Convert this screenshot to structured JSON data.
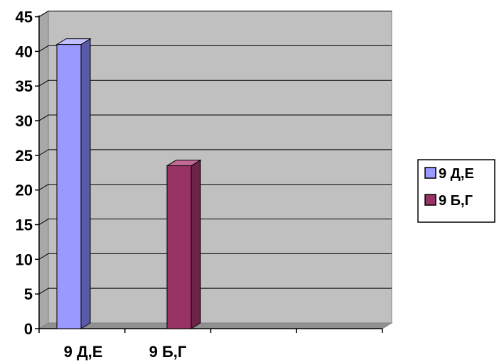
{
  "chart_data": {
    "type": "bar",
    "style": "3d-column",
    "categories": [
      "9 Д,Е",
      "9 Б,Г"
    ],
    "series": [
      {
        "name": "9 Д,Е",
        "values": [
          41,
          null
        ],
        "color": "#9999ff",
        "side_color": "#5a5aa8",
        "top_color": "#c0c0ff"
      },
      {
        "name": "9 Б,Г",
        "values": [
          null,
          23.5
        ],
        "color": "#993366",
        "side_color": "#6b2348",
        "top_color": "#c06a94"
      }
    ],
    "y_ticks": [
      "0",
      "5",
      "10",
      "15",
      "20",
      "25",
      "30",
      "35",
      "40",
      "45"
    ],
    "ylim": [
      0,
      45
    ],
    "grid": true,
    "plot_background": "#c0c0c0",
    "legend_position": "right",
    "title": "",
    "xlabel": "",
    "ylabel": ""
  }
}
